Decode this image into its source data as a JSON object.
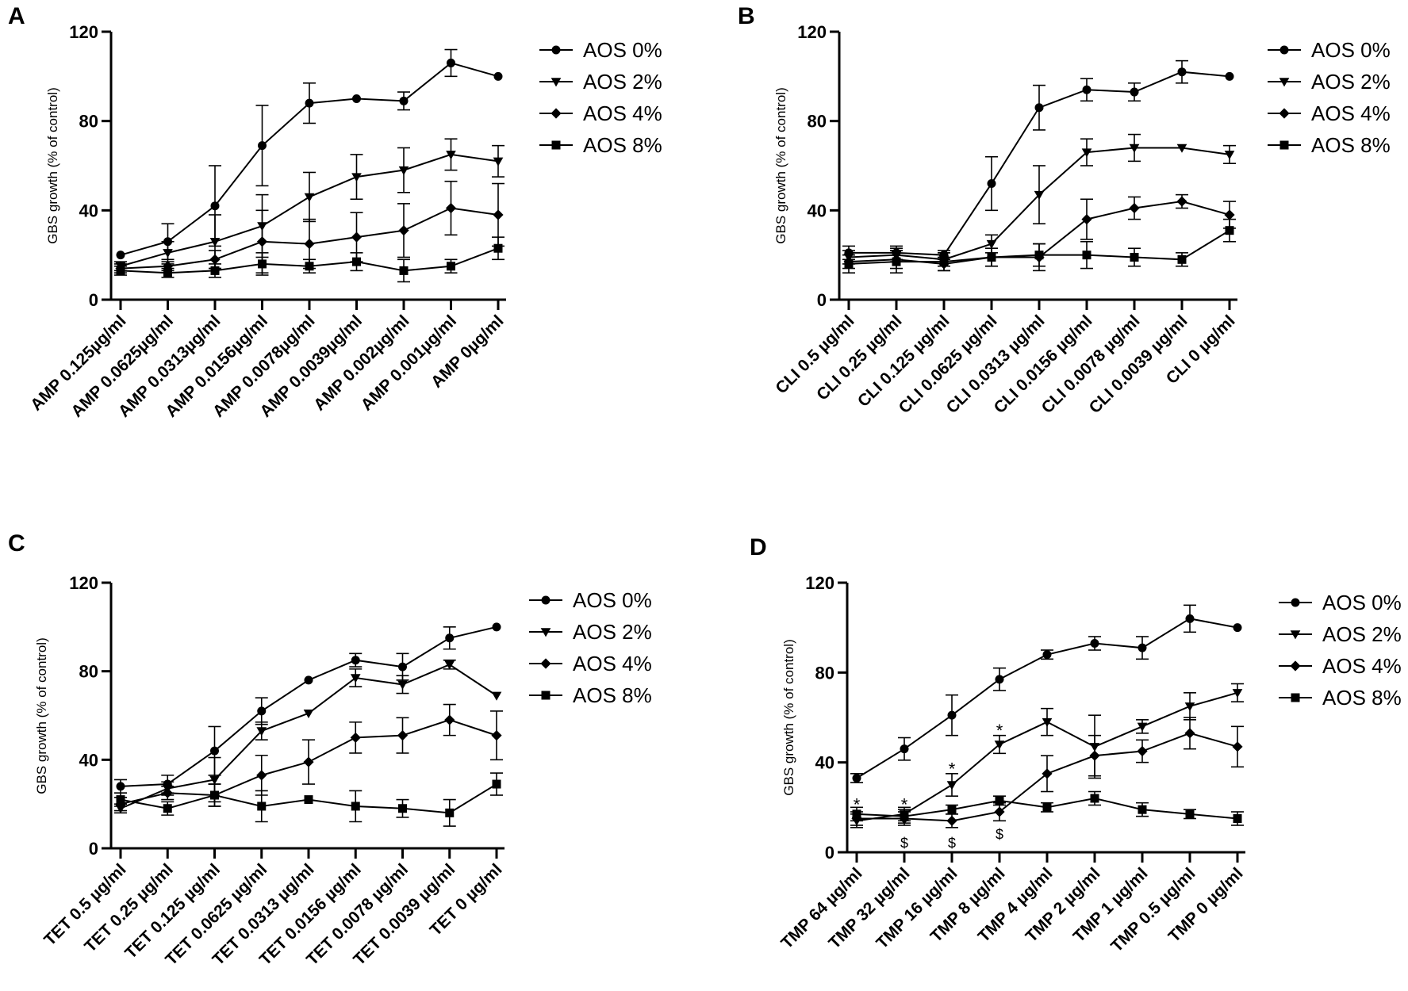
{
  "chart_data": [
    {
      "panel": "A",
      "type": "line",
      "xlabel": "",
      "ylabel": "GBS growth (% of control)",
      "ylim": [
        0,
        120
      ],
      "yticks": [
        "0",
        "40",
        "80",
        "120"
      ],
      "categories": [
        "AMP 0.125µg/ml",
        "AMP 0.0625µg/ml",
        "AMP 0.0313µg/ml",
        "AMP 0.0156µg/ml",
        "AMP 0.0078µg/ml",
        "AMP 0.0039µg/ml",
        "AMP 0.002µg/ml",
        "AMP 0.001µg/ml",
        "AMP 0µg/ml"
      ],
      "legend": "top-right",
      "series": [
        {
          "name": "AOS 0%",
          "marker": "circle",
          "values": [
            20,
            26,
            42,
            69,
            88,
            90,
            89,
            106,
            100
          ],
          "errors": [
            0,
            8,
            18,
            18,
            9,
            0,
            4,
            6,
            0
          ]
        },
        {
          "name": "AOS 2%",
          "marker": "triangle-down",
          "values": [
            15,
            21,
            26,
            33,
            46,
            55,
            58,
            65,
            62
          ],
          "errors": [
            2,
            5,
            12,
            14,
            11,
            10,
            10,
            7,
            7
          ]
        },
        {
          "name": "AOS 4%",
          "marker": "diamond",
          "values": [
            14,
            15,
            18,
            26,
            25,
            28,
            31,
            41,
            38
          ],
          "errors": [
            2,
            2,
            4,
            14,
            11,
            11,
            12,
            12,
            14
          ]
        },
        {
          "name": "AOS 8%",
          "marker": "square",
          "values": [
            13,
            12,
            13,
            16,
            15,
            17,
            13,
            15,
            23
          ],
          "errors": [
            2,
            2,
            3,
            5,
            3,
            4,
            5,
            3,
            5
          ]
        }
      ],
      "annotations": []
    },
    {
      "panel": "B",
      "type": "line",
      "xlabel": "",
      "ylabel": "GBS growth (% of control)",
      "ylim": [
        0,
        120
      ],
      "yticks": [
        "0",
        "40",
        "80",
        "120"
      ],
      "categories": [
        "CLI 0.5 µg/ml",
        "CLI 0.25 µg/ml",
        "CLI 0.125 µg/ml",
        "CLI 0.0625 µg/ml",
        "CLI 0.0313 µg/ml",
        "CLI 0.0156 µg/ml",
        "CLI 0.0078 µg/ml",
        "CLI 0.0039 µg/ml",
        "CLI 0 µg/ml"
      ],
      "legend": "top-right",
      "series": [
        {
          "name": "AOS 0%",
          "marker": "circle",
          "values": [
            21,
            21,
            20,
            52,
            86,
            94,
            93,
            102,
            100
          ],
          "errors": [
            3,
            3,
            2,
            12,
            10,
            5,
            4,
            5,
            0
          ]
        },
        {
          "name": "AOS 2%",
          "marker": "triangle-down",
          "values": [
            19,
            20,
            18,
            25,
            47,
            66,
            68,
            68,
            65
          ],
          "errors": [
            3,
            3,
            3,
            4,
            13,
            6,
            6,
            0,
            4
          ]
        },
        {
          "name": "AOS 4%",
          "marker": "diamond",
          "values": [
            17,
            18,
            16,
            19,
            19,
            36,
            41,
            44,
            38
          ],
          "errors": [
            3,
            4,
            3,
            4,
            6,
            9,
            5,
            3,
            6
          ]
        },
        {
          "name": "AOS 8%",
          "marker": "square",
          "values": [
            16,
            17,
            17,
            19,
            20,
            20,
            19,
            18,
            31
          ],
          "errors": [
            4,
            5,
            4,
            4,
            5,
            6,
            4,
            3,
            5
          ]
        }
      ],
      "annotations": []
    },
    {
      "panel": "C",
      "type": "line",
      "xlabel": "",
      "ylabel": "GBS growth (% of control)",
      "ylim": [
        0,
        120
      ],
      "yticks": [
        "0",
        "40",
        "80",
        "120"
      ],
      "categories": [
        "TET 0.5 µg/ml",
        "TET 0.25 µg/ml",
        "TET 0.125 µg/ml",
        "TET 0.0625 µg/ml",
        "TET 0.0313 µg/ml",
        "TET 0.0156 µg/ml",
        "TET 0.0078 µg/ml",
        "TET 0.0039 µg/ml",
        "TET 0 µg/ml"
      ],
      "legend": "top-right",
      "series": [
        {
          "name": "AOS 0%",
          "marker": "circle",
          "values": [
            28,
            29,
            44,
            62,
            76,
            85,
            82,
            95,
            100
          ],
          "errors": [
            3,
            4,
            11,
            6,
            0,
            3,
            6,
            5,
            0
          ]
        },
        {
          "name": "AOS 2%",
          "marker": "triangle-down",
          "values": [
            18,
            27,
            31,
            53,
            61,
            77,
            74,
            83,
            69
          ],
          "errors": [
            2,
            3,
            10,
            4,
            0,
            4,
            4,
            2,
            0
          ]
        },
        {
          "name": "AOS 4%",
          "marker": "diamond",
          "values": [
            20,
            25,
            24,
            33,
            39,
            50,
            51,
            58,
            51
          ],
          "errors": [
            3,
            3,
            5,
            9,
            10,
            7,
            8,
            7,
            11
          ]
        },
        {
          "name": "AOS 8%",
          "marker": "square",
          "values": [
            22,
            18,
            24,
            19,
            22,
            19,
            18,
            16,
            29
          ],
          "errors": [
            3,
            3,
            5,
            7,
            0,
            7,
            4,
            6,
            5
          ]
        }
      ],
      "annotations": []
    },
    {
      "panel": "D",
      "type": "line",
      "xlabel": "",
      "ylabel": "GBS growth (% of control)",
      "ylim": [
        0,
        120
      ],
      "yticks": [
        "0",
        "40",
        "80",
        "120"
      ],
      "categories": [
        "TMP 64 µg/ml",
        "TMP 32 µg/ml",
        "TMP 16 µg/ml",
        "TMP 8 µg/ml",
        "TMP 4 µg/ml",
        "TMP 2 µg/ml",
        "TMP 1 µg/ml",
        "TMP 0.5 µg/ml",
        "TMP 0 µg/ml"
      ],
      "legend": "top-right",
      "series": [
        {
          "name": "AOS 0%",
          "marker": "circle",
          "values": [
            33,
            46,
            61,
            77,
            88,
            93,
            91,
            104,
            100
          ],
          "errors": [
            2,
            5,
            9,
            5,
            2,
            3,
            5,
            6,
            0
          ]
        },
        {
          "name": "AOS 2%",
          "marker": "triangle-down",
          "values": [
            14,
            17,
            30,
            48,
            58,
            47,
            56,
            65,
            71
          ],
          "errors": [
            3,
            3,
            5,
            4,
            6,
            14,
            3,
            6,
            4
          ]
        },
        {
          "name": "AOS 4%",
          "marker": "diamond",
          "values": [
            15,
            15,
            14,
            18,
            35,
            43,
            45,
            53,
            47
          ],
          "errors": [
            3,
            3,
            3,
            4,
            8,
            9,
            5,
            7,
            9
          ]
        },
        {
          "name": "AOS 8%",
          "marker": "square",
          "values": [
            17,
            16,
            19,
            23,
            20,
            24,
            19,
            17,
            15
          ],
          "errors": [
            3,
            3,
            2,
            2,
            2,
            3,
            3,
            2,
            3
          ]
        }
      ],
      "annotations": [
        {
          "category_index": 0,
          "text": "*",
          "value": 22
        },
        {
          "category_index": 1,
          "text": "*",
          "value": 22
        },
        {
          "category_index": 2,
          "text": "*",
          "value": 38
        },
        {
          "category_index": 3,
          "text": "*",
          "value": 55
        },
        {
          "category_index": 1,
          "text": "$",
          "value": 4
        },
        {
          "category_index": 2,
          "text": "$",
          "value": 4
        },
        {
          "category_index": 3,
          "text": "$",
          "value": 8
        }
      ]
    }
  ]
}
